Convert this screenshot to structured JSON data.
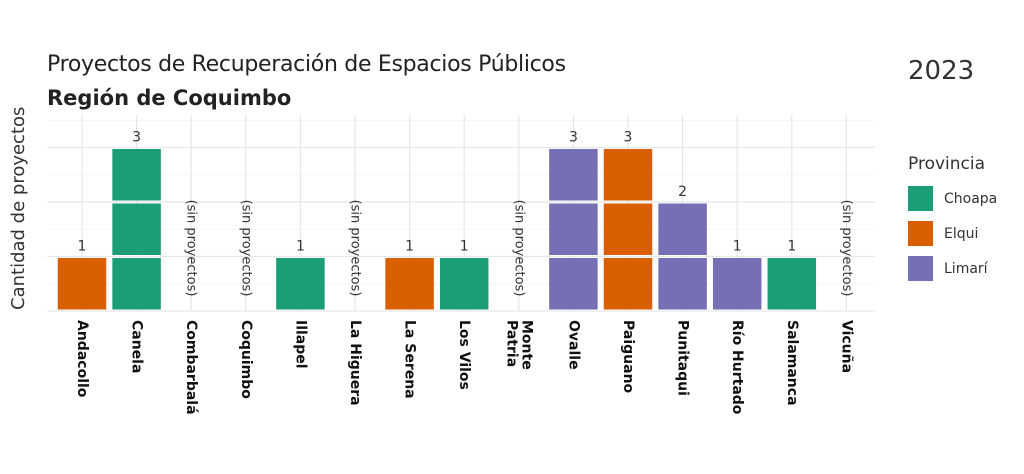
{
  "chart_data": {
    "type": "bar",
    "title": "Proyectos de Recuperación de Espacios Públicos",
    "subtitle": "Región de Coquimbo",
    "year_label": "2023",
    "ylabel": "Cantidad de proyectos",
    "xlabel": "",
    "ylim": [
      0,
      3.6
    ],
    "grid": true,
    "legend_position": "right",
    "legend_title": "Provincia",
    "empty_label": "(sin proyectos)",
    "categories": [
      "Andacollo",
      "Canela",
      "Combarbalá",
      "Coquimbo",
      "Illapel",
      "La Higuera",
      "La Serena",
      "Los Vilos",
      "Monte Patria",
      "Ovalle",
      "Paiguano",
      "Punitaqui",
      "Río Hurtado",
      "Salamanca",
      "Vicuña"
    ],
    "values": [
      1,
      3,
      0,
      0,
      1,
      0,
      1,
      1,
      0,
      3,
      3,
      2,
      1,
      1,
      0
    ],
    "provincia": [
      "Elqui",
      "Choapa",
      null,
      null,
      "Choapa",
      null,
      "Elqui",
      "Choapa",
      null,
      "Limarí",
      "Elqui",
      "Limarí",
      "Limarí",
      "Choapa",
      null
    ],
    "legend": [
      {
        "name": "Choapa",
        "color": "#1B9E77"
      },
      {
        "name": "Elqui",
        "color": "#D95F02"
      },
      {
        "name": "Limarí",
        "color": "#7570B3"
      }
    ]
  }
}
